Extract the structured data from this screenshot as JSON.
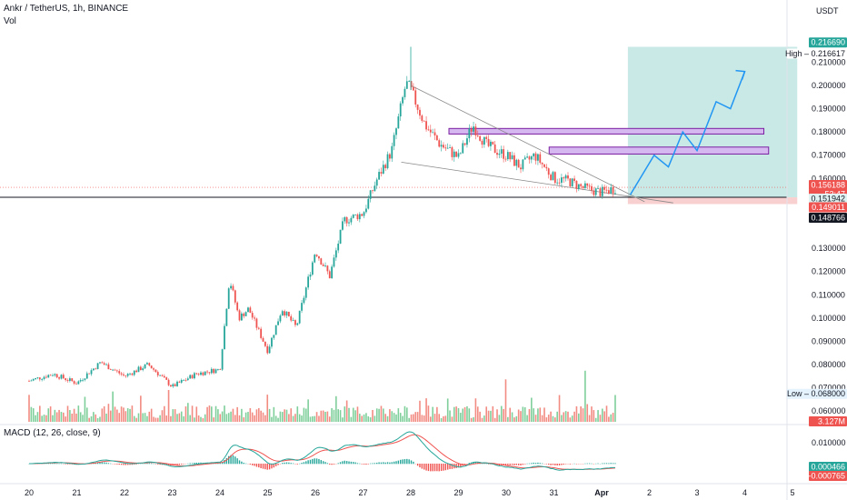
{
  "header": {
    "symbol": "Ankr / TetherUS, 1h, BINANCE",
    "volume_label": "Vol",
    "macd_label": "MACD (12, 26, close, 9)",
    "currency": "USDT"
  },
  "chart_data": {
    "type": "candlestick",
    "x_ticks": [
      "20",
      "21",
      "22",
      "23",
      "24",
      "25",
      "26",
      "27",
      "28",
      "29",
      "30",
      "31",
      "Apr",
      "2",
      "3",
      "4",
      "5"
    ],
    "price_ticks": [
      "0.210000",
      "0.200000",
      "0.190000",
      "0.180000",
      "0.170000",
      "0.160000",
      "0.130000",
      "0.120000",
      "0.110000",
      "0.100000",
      "0.090000",
      "0.080000",
      "0.070000",
      "0.060000"
    ],
    "price_range": [
      0.055,
      0.225
    ],
    "price_tags": [
      {
        "label": "High",
        "value": "0.216617"
      },
      {
        "label": "",
        "value": "0.216690"
      },
      {
        "label": "",
        "value": "0.156188"
      },
      {
        "label": "",
        "value": "53:47"
      },
      {
        "label": "",
        "value": "0.151942"
      },
      {
        "label": "",
        "value": "0.149011"
      },
      {
        "label": "",
        "value": "0.148766"
      },
      {
        "label": "Low",
        "value": "0.068000"
      }
    ],
    "volume_tag": "3.127M",
    "macd_ticks": [
      "0.010000"
    ],
    "macd_tags": [
      "0.000466",
      "-0.000765"
    ],
    "colors": {
      "up": "#26a69a",
      "down": "#ef5350",
      "volume_up": "#7fcf9b",
      "volume_down": "#f28b82",
      "macd_line": "#26a69a",
      "signal_line": "#ef5350",
      "zone_fill": "#d5b8f0",
      "zone_border": "#7b1fa2",
      "target_fill": "#b2dfdb",
      "stop_fill": "#f8c8c8",
      "projection": "#2196f3",
      "trendline": "#8a8a8a"
    },
    "price_path": [
      [
        0,
        0.073
      ],
      [
        0.5,
        0.076
      ],
      [
        1.0,
        0.072
      ],
      [
        1.5,
        0.081
      ],
      [
        2.0,
        0.075
      ],
      [
        2.5,
        0.08
      ],
      [
        3.0,
        0.0705
      ],
      [
        3.5,
        0.076
      ],
      [
        4.0,
        0.078
      ],
      [
        4.2,
        0.117
      ],
      [
        4.4,
        0.1
      ],
      [
        4.6,
        0.104
      ],
      [
        5.0,
        0.086
      ],
      [
        5.3,
        0.104
      ],
      [
        5.6,
        0.096
      ],
      [
        6.0,
        0.129
      ],
      [
        6.3,
        0.118
      ],
      [
        6.6,
        0.142
      ],
      [
        7.0,
        0.145
      ],
      [
        7.3,
        0.16
      ],
      [
        7.6,
        0.172
      ],
      [
        7.9,
        0.201
      ],
      [
        8.0,
        0.198
      ],
      [
        8.3,
        0.183
      ],
      [
        8.6,
        0.175
      ],
      [
        9.0,
        0.169
      ],
      [
        9.3,
        0.183
      ],
      [
        9.6,
        0.174
      ],
      [
        10.0,
        0.17
      ],
      [
        10.3,
        0.165
      ],
      [
        10.6,
        0.17
      ],
      [
        11.0,
        0.16
      ],
      [
        11.3,
        0.159
      ],
      [
        11.6,
        0.156
      ],
      [
        12.0,
        0.154
      ],
      [
        12.3,
        0.156
      ]
    ],
    "projection_path": [
      [
        12.6,
        0.153
      ],
      [
        13.1,
        0.17
      ],
      [
        13.4,
        0.165
      ],
      [
        13.7,
        0.18
      ],
      [
        14.0,
        0.172
      ],
      [
        14.4,
        0.193
      ],
      [
        14.7,
        0.19
      ],
      [
        15.0,
        0.206
      ]
    ]
  }
}
